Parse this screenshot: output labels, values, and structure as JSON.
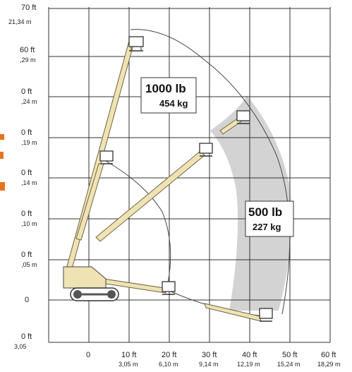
{
  "y_axis": {
    "ticks": [
      {
        "ft": "70 ft",
        "m": "21,34  m"
      },
      {
        "ft": "60 ft",
        "m": ",29 m"
      },
      {
        "ft": "0 ft",
        "m": ",24 m"
      },
      {
        "ft": "0 ft",
        "m": ",19 m"
      },
      {
        "ft": "0 ft",
        "m": ",14 m"
      },
      {
        "ft": "0 ft",
        "m": ",10 m"
      },
      {
        "ft": "0 ft",
        "m": ",05 m"
      },
      {
        "ft": "0",
        "m": ""
      },
      {
        "ft": "0 ft",
        "m": "3,05"
      }
    ]
  },
  "x_axis": {
    "ticks": [
      {
        "ft": "0",
        "m": ""
      },
      {
        "ft": "10 ft",
        "m": "3,05 m"
      },
      {
        "ft": "20 ft",
        "m": "6,10 m"
      },
      {
        "ft": "30 ft",
        "m": "9,14 m"
      },
      {
        "ft": "40 ft",
        "m": "12,19 m"
      },
      {
        "ft": "50 ft",
        "m": "15,24 m"
      },
      {
        "ft": "60 ft",
        "m": "18,29 m"
      }
    ]
  },
  "zones": {
    "inner": {
      "weight_lb": "1000 lb",
      "weight_kg": "454 kg"
    },
    "outer": {
      "weight_lb": "500 lb",
      "weight_kg": "227 kg"
    }
  },
  "colors": {
    "grid": "#333333",
    "outer_zone_fill": "#d3d3d3",
    "boom_fill": "#efe3b4",
    "accent": "#e8731f"
  }
}
